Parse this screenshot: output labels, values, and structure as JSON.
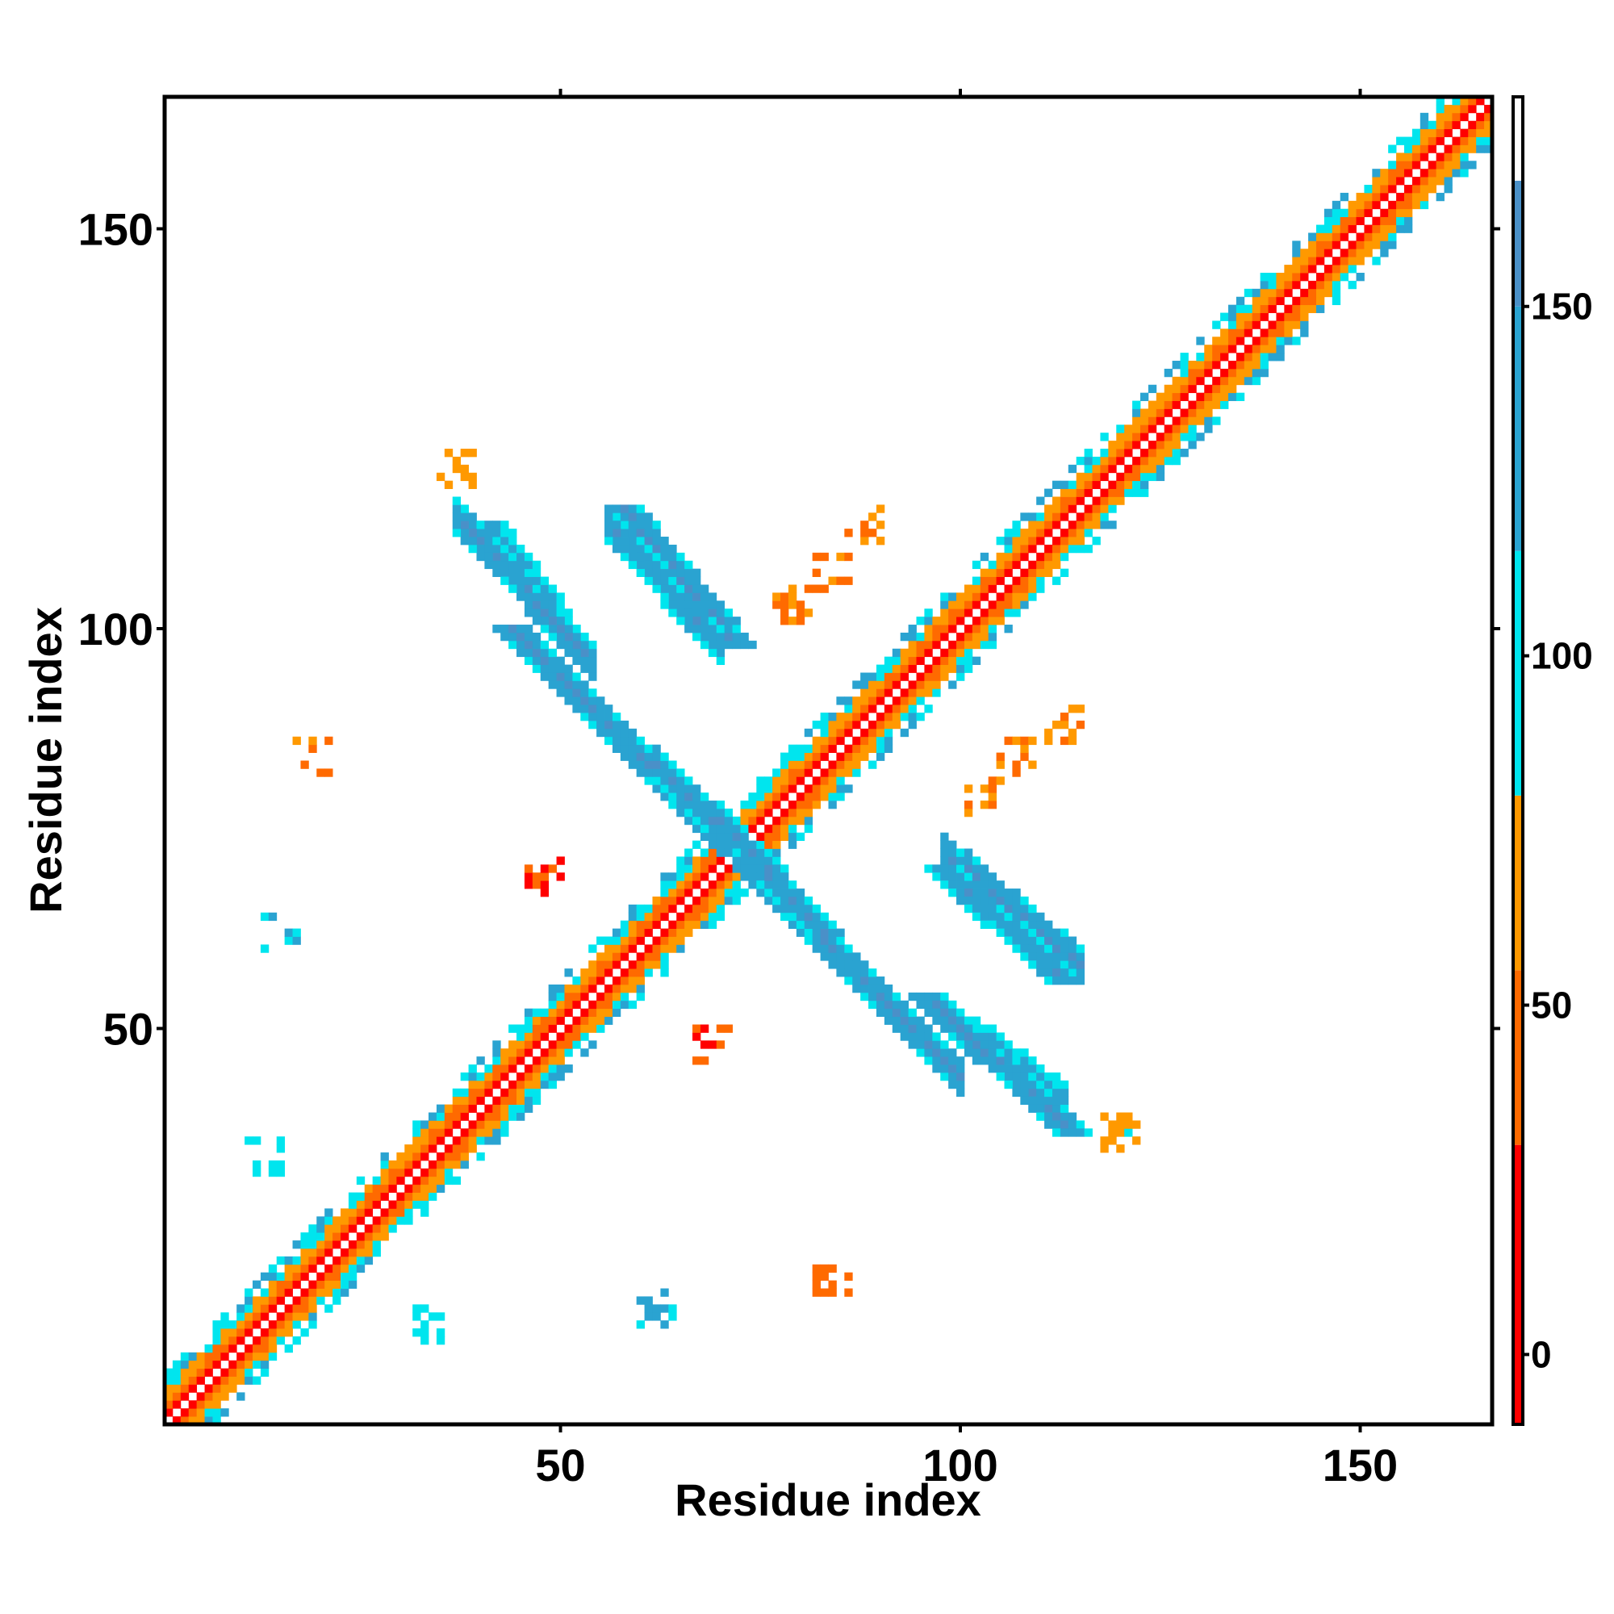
{
  "chart_data": {
    "type": "heatmap",
    "title": "",
    "xlabel": "Residue index",
    "ylabel": "Residue index",
    "xlim": [
      1,
      166
    ],
    "ylim": [
      1,
      166
    ],
    "x_ticks": [
      50,
      100,
      150
    ],
    "y_ticks": [
      50,
      100,
      150
    ],
    "grid": false,
    "legend": "none",
    "colorbar": {
      "position": "right",
      "range": [
        -10,
        180
      ],
      "ticks": [
        0,
        50,
        100,
        150
      ],
      "bands": [
        {
          "from": -10,
          "to": 30,
          "color": "#ff0000"
        },
        {
          "from": 30,
          "to": 55,
          "color": "#ff6a00"
        },
        {
          "from": 55,
          "to": 80,
          "color": "#ff9900"
        },
        {
          "from": 80,
          "to": 115,
          "color": "#00e5ee"
        },
        {
          "from": 115,
          "to": 150,
          "color": "#2aa3d1"
        },
        {
          "from": 150,
          "to": 168,
          "color": "#4a90c8"
        },
        {
          "from": 168,
          "to": 180,
          "color": "#ffffff"
        }
      ]
    },
    "diagonal": {
      "min": 1,
      "max": 166
    },
    "bands": [
      {
        "from": [
          72,
          72
        ],
        "to": [
          44,
          100
        ],
        "value": 155,
        "width": 2
      },
      {
        "from": [
          49,
          102
        ],
        "to": [
          41,
          113
        ],
        "value": 140,
        "width": 2
      },
      {
        "from": [
          72,
          98
        ],
        "to": [
          58,
          115
        ],
        "value": 155,
        "width": 2
      },
      {
        "from": [
          73,
          73
        ],
        "to": [
          86,
          58
        ],
        "value": 150,
        "width": 2
      },
      {
        "from": [
          96,
          54
        ],
        "to": [
          114,
          37
        ],
        "value": 150,
        "width": 2
      },
      {
        "from": [
          98,
          70
        ],
        "to": [
          113,
          56
        ],
        "value": 145,
        "width": 2
      }
    ],
    "clusters": [
      {
        "x": 19,
        "y": 84,
        "value": 50
      },
      {
        "x": 84,
        "y": 19,
        "value": 50
      },
      {
        "x": 13,
        "y": 34,
        "value": 100
      },
      {
        "x": 34,
        "y": 13,
        "value": 100
      },
      {
        "x": 88,
        "y": 113,
        "value": 60
      },
      {
        "x": 113,
        "y": 88,
        "value": 60
      },
      {
        "x": 79,
        "y": 103,
        "value": 55
      },
      {
        "x": 103,
        "y": 79,
        "value": 55
      },
      {
        "x": 107,
        "y": 84,
        "value": 50
      },
      {
        "x": 84,
        "y": 107,
        "value": 50
      },
      {
        "x": 37,
        "y": 120,
        "value": 70
      },
      {
        "x": 120,
        "y": 37,
        "value": 70
      },
      {
        "x": 48,
        "y": 69,
        "value": 30
      },
      {
        "x": 69,
        "y": 48,
        "value": 30
      },
      {
        "x": 15,
        "y": 62,
        "value": 120
      },
      {
        "x": 62,
        "y": 15,
        "value": 120
      }
    ]
  }
}
